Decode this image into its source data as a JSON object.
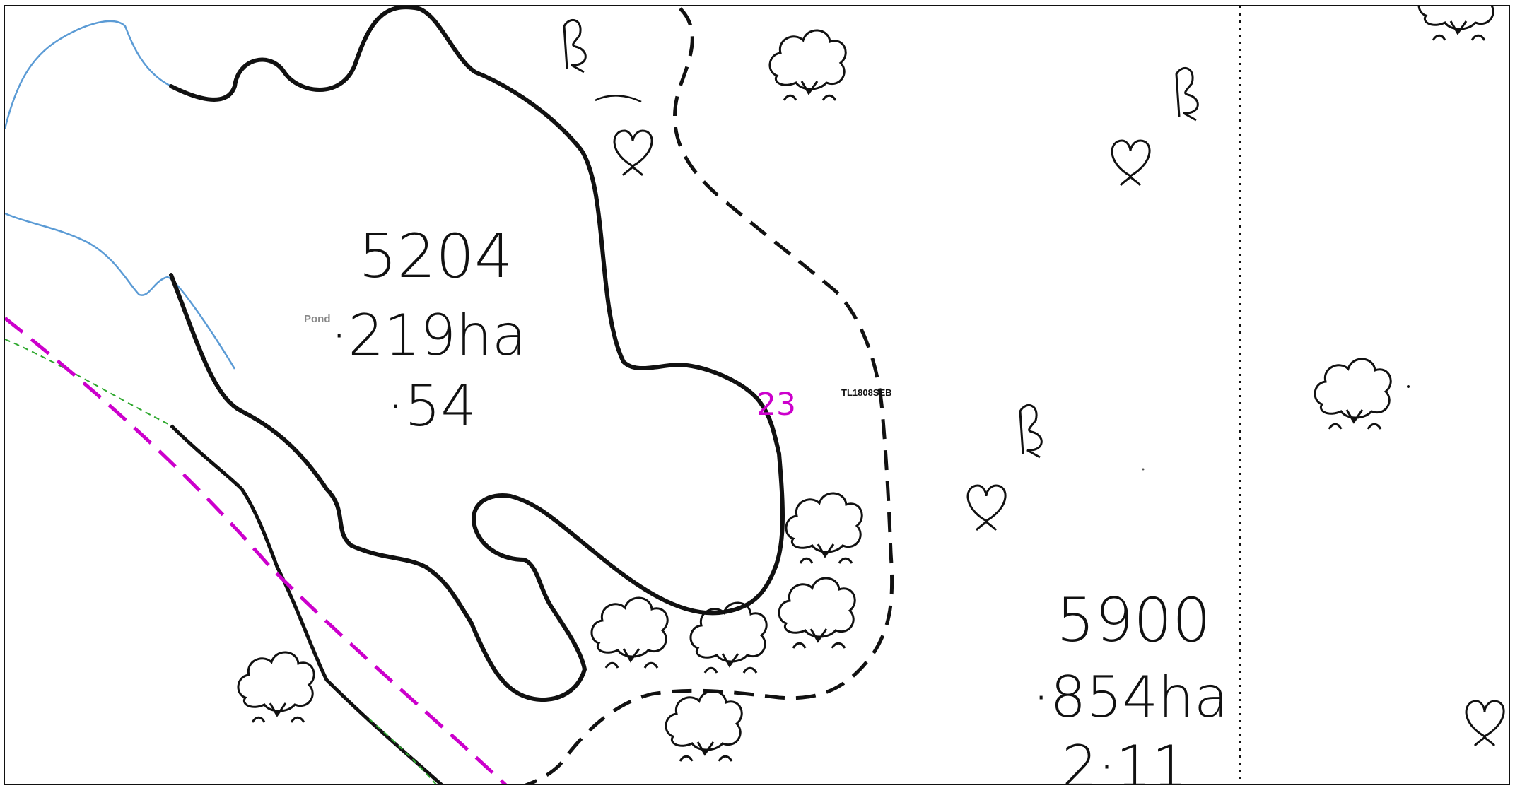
{
  "map": {
    "parcels": [
      {
        "number": "5204",
        "area": "·219ha",
        "acres": "·54"
      },
      {
        "number": "5900",
        "area": "·854ha",
        "acres": "2·11"
      }
    ],
    "labels": {
      "pond": "Pond",
      "sheet_ref": "TL1808SEB",
      "boundary_marker": "23"
    },
    "symbols": {
      "tree": "deciduous-tree-icon",
      "bush": "bush-icon",
      "boulder": "boulder-b-icon"
    },
    "colors": {
      "water": "#5b9bd5",
      "boundary_magenta": "#cc00cc",
      "path_green": "#2ea82e",
      "ink": "#111111",
      "pond_label": "#888888"
    }
  }
}
